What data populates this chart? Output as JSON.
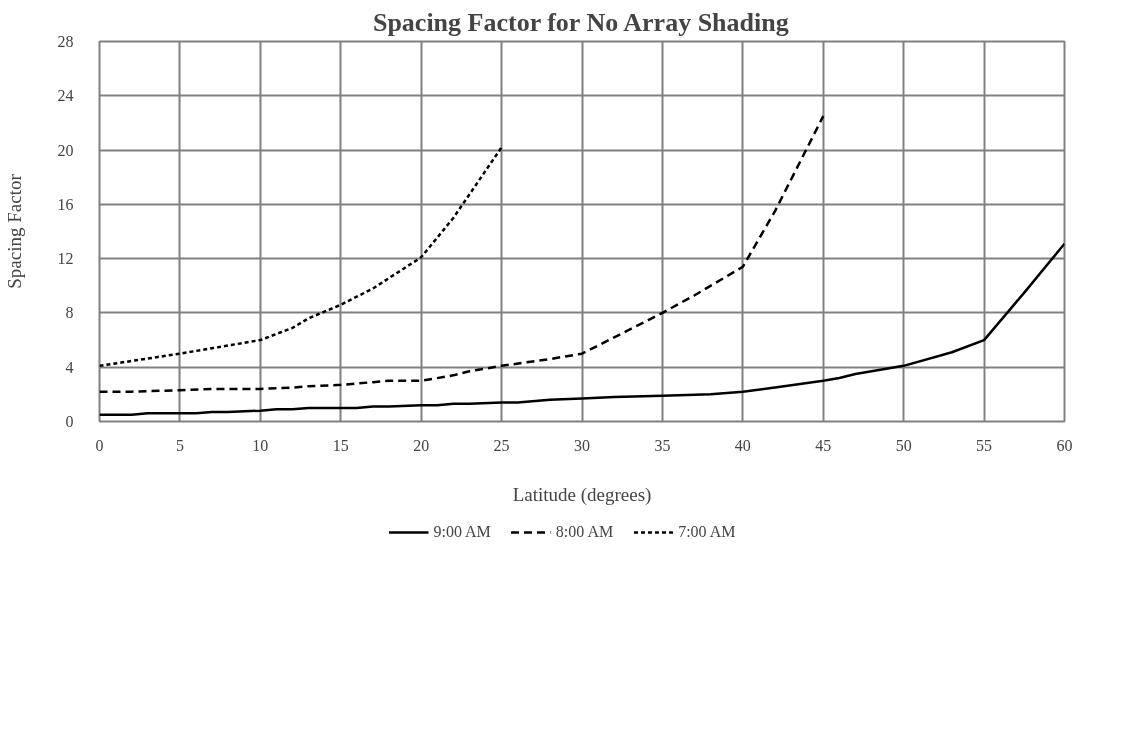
{
  "chart_data": {
    "type": "line",
    "title": "Spacing Factor for No Array Shading",
    "xlabel": "Latitude (degrees)",
    "ylabel": "Spacing Factor",
    "xlim": [
      0,
      60
    ],
    "xticks": [
      0,
      5,
      10,
      15,
      20,
      25,
      30,
      35,
      40,
      45,
      50,
      55,
      60
    ],
    "ylim": [
      0,
      28
    ],
    "yticks": [
      0,
      4,
      8,
      12,
      16,
      20,
      24,
      28
    ],
    "grid": true,
    "legend": "bottom",
    "marker": "none",
    "series": [
      {
        "name": "9:00 AM",
        "color": "#000000",
        "line_style": "solid",
        "x": [
          0,
          2,
          3,
          5,
          6,
          7,
          8,
          10,
          11,
          12,
          13,
          15,
          16,
          17,
          18,
          20,
          21,
          22,
          23,
          25,
          26,
          28,
          30,
          32,
          35,
          38,
          40,
          42,
          45,
          46,
          47,
          50,
          53,
          55,
          57.5,
          60
        ],
        "values": [
          0.5,
          0.5,
          0.6,
          0.6,
          0.6,
          0.7,
          0.7,
          0.8,
          0.9,
          0.9,
          1.0,
          1.0,
          1.0,
          1.1,
          1.1,
          1.2,
          1.2,
          1.3,
          1.3,
          1.4,
          1.4,
          1.6,
          1.7,
          1.8,
          1.9,
          2.0,
          2.2,
          2.5,
          3.0,
          3.2,
          3.5,
          4.1,
          5.1,
          6.0,
          9.5,
          13.1
        ]
      },
      {
        "name": "8:00 AM",
        "color": "#000000",
        "line_style": "dashed",
        "x": [
          0,
          2,
          5,
          7,
          10,
          12,
          13,
          15,
          17,
          18,
          20,
          22,
          23,
          25,
          28,
          30,
          32,
          35,
          37,
          40,
          42,
          45
        ],
        "values": [
          2.2,
          2.2,
          2.3,
          2.4,
          2.4,
          2.5,
          2.6,
          2.7,
          2.9,
          3.0,
          3.0,
          3.4,
          3.7,
          4.1,
          4.6,
          5.0,
          6.2,
          8.0,
          9.3,
          11.4,
          15.5,
          22.5
        ]
      },
      {
        "name": "7:00 AM",
        "color": "#000000",
        "line_style": "dotted",
        "x": [
          0,
          5,
          7,
          10,
          12,
          13,
          15,
          17,
          20,
          22,
          25
        ],
        "values": [
          4.1,
          5.0,
          5.4,
          6.0,
          6.9,
          7.6,
          8.6,
          9.8,
          12.1,
          15.0,
          20.2
        ]
      }
    ]
  }
}
